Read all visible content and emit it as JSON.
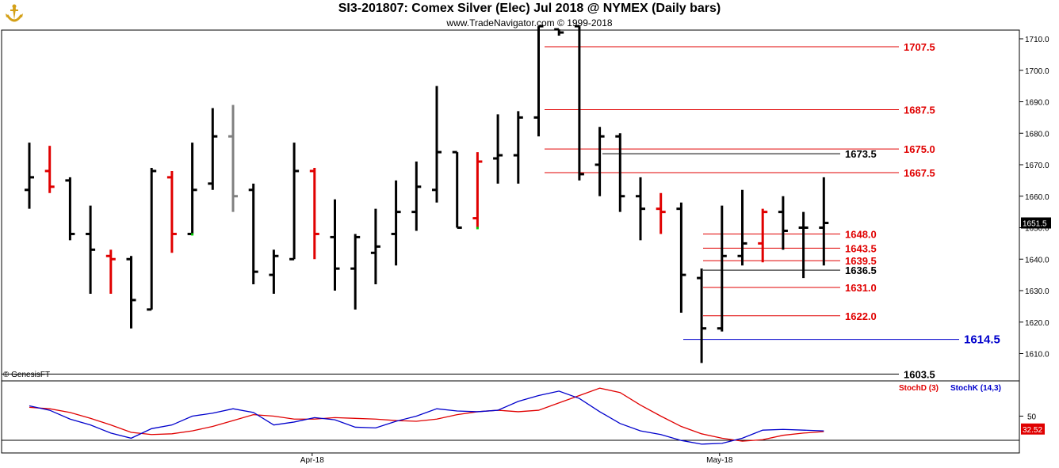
{
  "header": {
    "title": "SI3-201807:  Comex Silver (Elec) Jul 2018 @ NYMEX  (Daily bars)",
    "subtitle": "www.TradeNavigator.com © 1999-2018",
    "copyright": "© GenesisFT"
  },
  "colors": {
    "up": "#000000",
    "down": "#e00000",
    "neutral": "#808080",
    "stoch_d": "#e00000",
    "stoch_k": "#0000cc",
    "level_red": "#e00000",
    "level_blue": "#0000cc"
  },
  "chart_data": [
    {
      "type": "ohlc",
      "title": "SI3-201807:  Comex Silver (Elec) Jul 2018 @ NYMEX  (Daily bars)",
      "ylim": [
        1603.5,
        1714
      ],
      "y_ticks": [
        1610.0,
        1620.0,
        1630.0,
        1640.0,
        1650.0,
        1660.0,
        1670.0,
        1680.0,
        1690.0,
        1700.0,
        1710.0
      ],
      "x_labels": [
        {
          "label": "Apr-18",
          "index": 14
        },
        {
          "label": "May-18",
          "index": 34
        }
      ],
      "last_price": "1651.5",
      "bars": [
        {
          "o": 1662,
          "h": 1677,
          "l": 1656,
          "c": 1666,
          "col": "up"
        },
        {
          "o": 1668,
          "h": 1676,
          "l": 1661,
          "c": 1663,
          "col": "down"
        },
        {
          "o": 1665,
          "h": 1666,
          "l": 1646,
          "c": 1648,
          "col": "up"
        },
        {
          "o": 1648,
          "h": 1657,
          "l": 1629,
          "c": 1643,
          "col": "up"
        },
        {
          "o": 1641,
          "h": 1643,
          "l": 1629,
          "c": 1640,
          "col": "down"
        },
        {
          "o": 1640,
          "h": 1641,
          "l": 1618,
          "c": 1627,
          "col": "up"
        },
        {
          "o": 1624,
          "h": 1669,
          "l": 1624,
          "c": 1668,
          "col": "up"
        },
        {
          "o": 1666,
          "h": 1668,
          "l": 1642,
          "c": 1648,
          "col": "down"
        },
        {
          "o": 1648,
          "h": 1677,
          "l": 1648,
          "c": 1662,
          "col": "up",
          "dot": "g"
        },
        {
          "o": 1664,
          "h": 1688,
          "l": 1662,
          "c": 1679,
          "col": "up"
        },
        {
          "o": 1679,
          "h": 1689,
          "l": 1655,
          "c": 1660,
          "col": "neutral"
        },
        {
          "o": 1662,
          "h": 1664,
          "l": 1632,
          "c": 1636,
          "col": "up"
        },
        {
          "o": 1635,
          "h": 1643,
          "l": 1629,
          "c": 1641,
          "col": "up"
        },
        {
          "o": 1640,
          "h": 1677,
          "l": 1640,
          "c": 1668,
          "col": "up"
        },
        {
          "o": 1668,
          "h": 1669,
          "l": 1640,
          "c": 1648,
          "col": "down"
        },
        {
          "o": 1647,
          "h": 1659,
          "l": 1630,
          "c": 1637,
          "col": "up"
        },
        {
          "o": 1637,
          "h": 1648,
          "l": 1624,
          "c": 1647,
          "col": "up"
        },
        {
          "o": 1642,
          "h": 1656,
          "l": 1632,
          "c": 1644,
          "col": "up"
        },
        {
          "o": 1648,
          "h": 1665,
          "l": 1638,
          "c": 1655,
          "col": "up"
        },
        {
          "o": 1655,
          "h": 1671,
          "l": 1649,
          "c": 1663,
          "col": "up"
        },
        {
          "o": 1662,
          "h": 1695,
          "l": 1658,
          "c": 1674,
          "col": "up"
        },
        {
          "o": 1674,
          "h": 1674,
          "l": 1650,
          "c": 1650,
          "col": "up"
        },
        {
          "o": 1653,
          "h": 1674,
          "l": 1650,
          "c": 1671,
          "col": "down",
          "dot": "g"
        },
        {
          "o": 1672,
          "h": 1686,
          "l": 1664,
          "c": 1673,
          "col": "up"
        },
        {
          "o": 1673,
          "h": 1687,
          "l": 1664,
          "c": 1685,
          "col": "up"
        },
        {
          "o": 1685,
          "h": 1714,
          "l": 1679,
          "c": 1714,
          "col": "up"
        },
        {
          "o": 1713,
          "h": 1713,
          "l": 1711,
          "c": 1712,
          "col": "up"
        },
        {
          "o": 1714,
          "h": 1714,
          "l": 1665,
          "c": 1667,
          "col": "up"
        },
        {
          "o": 1670,
          "h": 1682,
          "l": 1660,
          "c": 1679,
          "col": "up"
        },
        {
          "o": 1679,
          "h": 1680,
          "l": 1655,
          "c": 1660,
          "col": "up"
        },
        {
          "o": 1660,
          "h": 1666,
          "l": 1646,
          "c": 1656,
          "col": "up"
        },
        {
          "o": 1656,
          "h": 1661,
          "l": 1648,
          "c": 1655,
          "col": "down"
        },
        {
          "o": 1656,
          "h": 1658,
          "l": 1623,
          "c": 1635,
          "col": "up"
        },
        {
          "o": 1634,
          "h": 1637,
          "l": 1607,
          "c": 1618,
          "col": "up"
        },
        {
          "o": 1618,
          "h": 1657,
          "l": 1617,
          "c": 1641,
          "col": "up"
        },
        {
          "o": 1641,
          "h": 1662,
          "l": 1638,
          "c": 1645,
          "col": "up"
        },
        {
          "o": 1645,
          "h": 1656,
          "l": 1639,
          "c": 1655,
          "col": "down"
        },
        {
          "o": 1655,
          "h": 1660,
          "l": 1643,
          "c": 1649,
          "col": "up"
        },
        {
          "o": 1650,
          "h": 1655,
          "l": 1634,
          "c": 1650,
          "col": "up"
        },
        {
          "o": 1650,
          "h": 1666,
          "l": 1638,
          "c": 1651.5,
          "col": "up"
        }
      ],
      "levels": [
        {
          "label": "1707.5",
          "value": 1707.5,
          "color": "red",
          "big": false,
          "from": 27
        },
        {
          "label": "1687.5",
          "value": 1687.5,
          "color": "red",
          "big": false,
          "from": 27
        },
        {
          "label": "1675.0",
          "value": 1675.0,
          "color": "red",
          "big": false,
          "from": 27
        },
        {
          "label": "1673.5",
          "value": 1673.5,
          "color": "black",
          "big": false,
          "from": 29
        },
        {
          "label": "1667.5",
          "value": 1667.5,
          "color": "red",
          "big": false,
          "from": 27
        },
        {
          "label": "1648.0",
          "value": 1648.0,
          "color": "red",
          "big": false,
          "from": 33
        },
        {
          "label": "1643.5",
          "value": 1643.5,
          "color": "red",
          "big": false,
          "from": 33
        },
        {
          "label": "1639.5",
          "value": 1639.5,
          "color": "red",
          "big": false,
          "from": 33
        },
        {
          "label": "1636.5",
          "value": 1636.5,
          "color": "black",
          "big": false,
          "from": 33
        },
        {
          "label": "1631.0",
          "value": 1631.0,
          "color": "red",
          "big": false,
          "from": 33
        },
        {
          "label": "1622.0",
          "value": 1622.0,
          "color": "red",
          "big": false,
          "from": 33
        },
        {
          "label": "1614.5",
          "value": 1614.5,
          "color": "blue",
          "big": true,
          "from": 32
        },
        {
          "label": "1603.5",
          "value": 1603.5,
          "color": "black",
          "big": false,
          "from": -1
        }
      ]
    },
    {
      "type": "line",
      "series": [
        {
          "name": "StochD (3)",
          "values": [
            62,
            60,
            55,
            47,
            38,
            28,
            25,
            26,
            30,
            36,
            44,
            52,
            50,
            46,
            46,
            48,
            47,
            46,
            44,
            43,
            46,
            52,
            56,
            58,
            56,
            58,
            68,
            78,
            88,
            82,
            65,
            50,
            36,
            26,
            20,
            16,
            18,
            24,
            27,
            29
          ]
        },
        {
          "name": "StochK (14,3)",
          "values": [
            64,
            58,
            46,
            38,
            27,
            20,
            33,
            38,
            50,
            54,
            60,
            55,
            38,
            42,
            48,
            45,
            35,
            34,
            43,
            50,
            60,
            57,
            56,
            58,
            70,
            78,
            84,
            74,
            56,
            40,
            30,
            25,
            17,
            12,
            13,
            20,
            31,
            32,
            31,
            30
          ]
        }
      ],
      "ylim": [
        0,
        100
      ],
      "y_ticks": [
        50
      ],
      "last_value": "32.52"
    }
  ]
}
